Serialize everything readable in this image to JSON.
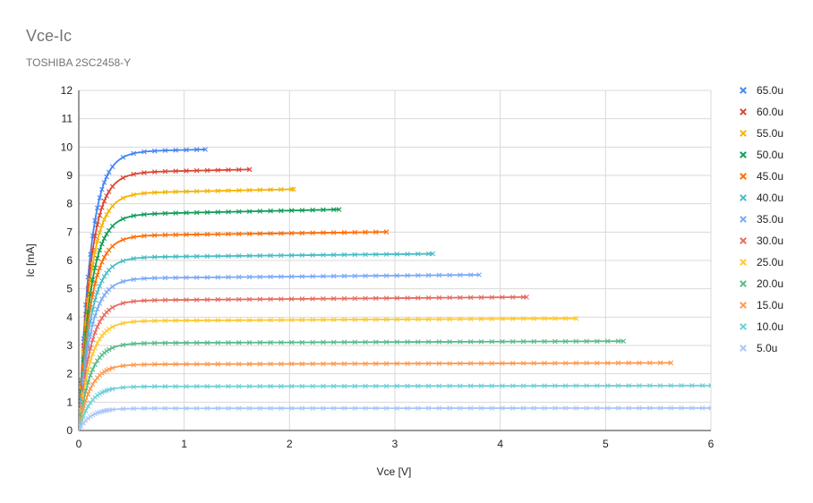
{
  "chart_data": {
    "type": "scatter",
    "title": "Vce-Ic",
    "subtitle": "TOSHIBA 2SC2458-Y",
    "xlabel": "Vce [V]",
    "ylabel": "Ic [mA]",
    "xlim": [
      0,
      6
    ],
    "ylim": [
      0,
      12
    ],
    "xticks": [
      0,
      1,
      2,
      3,
      4,
      5,
      6
    ],
    "yticks": [
      0,
      1,
      2,
      3,
      4,
      5,
      6,
      7,
      8,
      9,
      10,
      11,
      12
    ],
    "grid": true,
    "legend_position": "right",
    "marker": "x",
    "series": [
      {
        "name": "65.0u",
        "color": "#4285f4",
        "isat": 9.82,
        "slope": 0.08,
        "xmax": 1.2
      },
      {
        "name": "60.0u",
        "color": "#db4437",
        "isat": 9.08,
        "slope": 0.08,
        "xmax": 1.62
      },
      {
        "name": "55.0u",
        "color": "#f4b400",
        "isat": 8.35,
        "slope": 0.08,
        "xmax": 2.04
      },
      {
        "name": "50.0u",
        "color": "#0f9d58",
        "isat": 7.6,
        "slope": 0.08,
        "xmax": 2.47
      },
      {
        "name": "45.0u",
        "color": "#ff6d01",
        "isat": 6.86,
        "slope": 0.05,
        "xmax": 2.92
      },
      {
        "name": "40.0u",
        "color": "#46bdc6",
        "isat": 6.1,
        "slope": 0.04,
        "xmax": 3.36
      },
      {
        "name": "35.0u",
        "color": "#7baaf7",
        "isat": 5.36,
        "slope": 0.035,
        "xmax": 3.8
      },
      {
        "name": "30.0u",
        "color": "#e66b61",
        "isat": 4.58,
        "slope": 0.03,
        "xmax": 4.25
      },
      {
        "name": "25.0u",
        "color": "#fcc934",
        "isat": 3.86,
        "slope": 0.02,
        "xmax": 4.72
      },
      {
        "name": "20.0u",
        "color": "#57bb8a",
        "isat": 3.08,
        "slope": 0.014,
        "xmax": 5.17
      },
      {
        "name": "15.0u",
        "color": "#ff994d",
        "isat": 2.33,
        "slope": 0.01,
        "xmax": 5.62
      },
      {
        "name": "10.0u",
        "color": "#6fcfd8",
        "isat": 1.55,
        "slope": 0.006,
        "xmax": 6.0
      },
      {
        "name": "5.0u",
        "color": "#a9c6fa",
        "isat": 0.78,
        "slope": 0.002,
        "xmax": 6.0
      }
    ]
  }
}
